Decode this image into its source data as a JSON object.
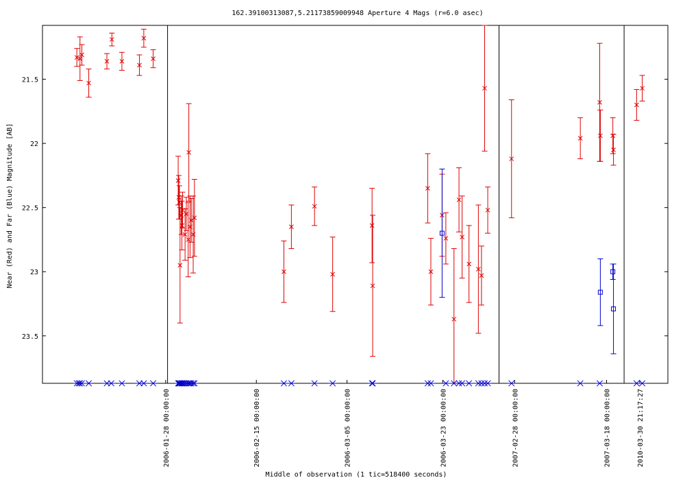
{
  "chart_data": {
    "type": "scatter",
    "title": "162.39100313087,5.21173859009948   Aperture 4 Mags (r=6.0 asec)",
    "xlabel": "Middle of observation (1 tic=518400 seconds)",
    "ylabel": "Near (Red) and Far (Blue) Magnitude [AB]",
    "ylim": [
      21.08,
      23.87
    ],
    "y_inverted": true,
    "yticks": [
      "21.5",
      "22",
      "22.5",
      "23",
      "23.5"
    ],
    "xlim": [
      0,
      1000
    ],
    "panels": [
      {
        "range": [
          0,
          200
        ]
      },
      {
        "range": [
          200,
          730
        ]
      },
      {
        "range": [
          730,
          930
        ]
      },
      {
        "range": [
          930,
          975
        ]
      }
    ],
    "xticks": [
      {
        "label": "2006-01-28 00:00:00",
        "x": 197
      },
      {
        "label": "2006-02-15 00:00:00",
        "x": 342
      },
      {
        "label": "2006-03-05 00:00:00",
        "x": 487
      },
      {
        "label": "2006-03-23 00:00:00",
        "x": 640
      },
      {
        "label": "2007-02-28 00:00:00",
        "x": 755
      },
      {
        "label": "2007-03-18 00:00:00",
        "x": 902
      },
      {
        "label": "2010-03-30 21:17:27",
        "x": 955
      }
    ],
    "series": [
      {
        "color": "#dd0000",
        "marker": "x",
        "points": [
          {
            "x": 55,
            "y": 21.33,
            "err": 0.07
          },
          {
            "x": 60,
            "y": 21.34,
            "err": 0.17
          },
          {
            "x": 63,
            "y": 21.31,
            "err": 0.08
          },
          {
            "x": 74,
            "y": 21.53,
            "err": 0.11
          },
          {
            "x": 103,
            "y": 21.36,
            "err": 0.06
          },
          {
            "x": 111,
            "y": 21.19,
            "err": 0.05
          },
          {
            "x": 127,
            "y": 21.36,
            "err": 0.07
          },
          {
            "x": 155,
            "y": 21.39,
            "err": 0.08
          },
          {
            "x": 162,
            "y": 21.18,
            "err": 0.07
          },
          {
            "x": 177,
            "y": 21.34,
            "err": 0.07
          },
          {
            "x": 217,
            "y": 22.29,
            "err": 0.19
          },
          {
            "x": 218,
            "y": 22.42,
            "err": 0.17
          },
          {
            "x": 219,
            "y": 22.46,
            "err": 0.13
          },
          {
            "x": 220,
            "y": 22.95,
            "err": 0.45
          },
          {
            "x": 222,
            "y": 22.56,
            "err": 0.15
          },
          {
            "x": 223,
            "y": 22.64,
            "err": 0.19
          },
          {
            "x": 224,
            "y": 22.52,
            "err": 0.14
          },
          {
            "x": 228,
            "y": 22.71,
            "err": 0.2
          },
          {
            "x": 230,
            "y": 22.55,
            "err": 0.13
          },
          {
            "x": 233,
            "y": 22.75,
            "err": 0.29
          },
          {
            "x": 234,
            "y": 22.07,
            "err": 0.38
          },
          {
            "x": 236,
            "y": 22.65,
            "err": 0.24
          },
          {
            "x": 238,
            "y": 22.6,
            "err": 0.17
          },
          {
            "x": 241,
            "y": 22.71,
            "err": 0.3
          },
          {
            "x": 243,
            "y": 22.58,
            "err": 0.3
          },
          {
            "x": 386,
            "y": 23.0,
            "err": 0.24
          },
          {
            "x": 398,
            "y": 22.65,
            "err": 0.17
          },
          {
            "x": 435,
            "y": 22.49,
            "err": 0.15
          },
          {
            "x": 464,
            "y": 23.02,
            "err": 0.29
          },
          {
            "x": 527,
            "y": 22.64,
            "err": 0.29
          },
          {
            "x": 528,
            "y": 23.11,
            "err": 0.55
          },
          {
            "x": 616,
            "y": 22.35,
            "err": 0.27
          },
          {
            "x": 621,
            "y": 23.0,
            "err": 0.26
          },
          {
            "x": 639,
            "y": 22.56,
            "err": 0.32
          },
          {
            "x": 645,
            "y": 22.74,
            "err": 0.2
          },
          {
            "x": 658,
            "y": 23.37,
            "err": 0.55
          },
          {
            "x": 666,
            "y": 22.44,
            "err": 0.25
          },
          {
            "x": 671,
            "y": 22.73,
            "err": 0.32
          },
          {
            "x": 682,
            "y": 22.94,
            "err": 0.3
          },
          {
            "x": 697,
            "y": 22.98,
            "err": 0.5
          },
          {
            "x": 702,
            "y": 23.03,
            "err": 0.23
          },
          {
            "x": 707,
            "y": 21.57,
            "err": 0.49
          },
          {
            "x": 712,
            "y": 22.52,
            "err": 0.18
          },
          {
            "x": 750,
            "y": 22.12,
            "err": 0.46
          },
          {
            "x": 860,
            "y": 21.96,
            "err": 0.16
          },
          {
            "x": 891,
            "y": 21.68,
            "err": 0.46
          },
          {
            "x": 892,
            "y": 21.94,
            "err": 0.2
          },
          {
            "x": 912,
            "y": 21.94,
            "err": 0.14
          },
          {
            "x": 913,
            "y": 22.05,
            "err": 0.12
          },
          {
            "x": 950,
            "y": 21.7,
            "err": 0.12
          },
          {
            "x": 959,
            "y": 21.57,
            "err": 0.1
          }
        ]
      },
      {
        "color": "#0000cc",
        "marker": "square",
        "points": [
          {
            "x": 639,
            "y": 22.7,
            "err": 0.5
          },
          {
            "x": 892,
            "y": 23.16,
            "err": 0.26
          },
          {
            "x": 912,
            "y": 23.0,
            "err": 0.06
          },
          {
            "x": 913,
            "y": 23.29,
            "err": 0.35
          }
        ]
      }
    ],
    "bottom_markers": {
      "color": "#0000cc",
      "y": 23.87,
      "x": [
        55,
        58,
        60,
        63,
        74,
        103,
        110,
        127,
        155,
        162,
        177,
        217,
        218,
        219,
        220,
        222,
        223,
        224,
        226,
        228,
        230,
        233,
        234,
        236,
        238,
        241,
        243,
        386,
        398,
        435,
        464,
        527,
        528,
        616,
        621,
        645,
        658,
        666,
        671,
        682,
        697,
        702,
        707,
        712,
        750,
        860,
        891,
        950,
        959
      ]
    }
  }
}
